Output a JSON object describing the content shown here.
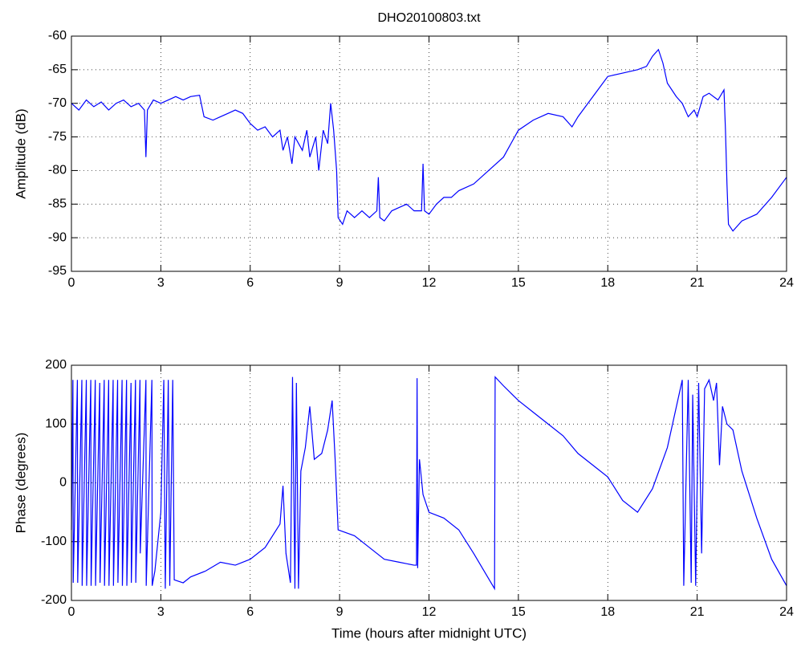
{
  "chart_data": [
    {
      "type": "line",
      "title": "DHO20100803.txt",
      "ylabel": "Amplitude (dB)",
      "color": "#0000ff",
      "grid": true,
      "xlim": [
        0,
        24
      ],
      "xticks": [
        0,
        3,
        6,
        9,
        12,
        15,
        18,
        21,
        24
      ],
      "ylim": [
        -95,
        -60
      ],
      "yticks": [
        -95,
        -90,
        -85,
        -80,
        -75,
        -70,
        -65,
        -60
      ],
      "x": [
        0,
        0.25,
        0.5,
        0.75,
        1,
        1.25,
        1.5,
        1.75,
        2,
        2.25,
        2.45,
        2.5,
        2.55,
        2.75,
        3,
        3.25,
        3.5,
        3.75,
        4,
        4.3,
        4.45,
        4.75,
        5,
        5.25,
        5.5,
        5.75,
        6,
        6.25,
        6.5,
        6.75,
        7,
        7.1,
        7.25,
        7.4,
        7.5,
        7.75,
        7.9,
        8,
        8.2,
        8.3,
        8.45,
        8.6,
        8.7,
        8.8,
        8.9,
        8.95,
        9.1,
        9.25,
        9.5,
        9.75,
        10,
        10.25,
        10.3,
        10.35,
        10.5,
        10.75,
        11,
        11.25,
        11.5,
        11.75,
        11.8,
        11.85,
        12,
        12.25,
        12.5,
        12.75,
        13,
        13.5,
        14,
        14.5,
        15,
        15.5,
        16,
        16.5,
        16.8,
        17,
        17.5,
        18,
        18.5,
        19,
        19.3,
        19.5,
        19.7,
        19.85,
        20,
        20.3,
        20.5,
        20.7,
        20.9,
        21,
        21.2,
        21.4,
        21.7,
        21.9,
        21.95,
        22,
        22.05,
        22.2,
        22.5,
        23,
        23.5,
        24
      ],
      "values": [
        -70,
        -71,
        -69.5,
        -70.5,
        -69.8,
        -71,
        -70,
        -69.5,
        -70.5,
        -70,
        -71,
        -78,
        -71,
        -69.5,
        -70,
        -69.5,
        -69,
        -69.5,
        -69,
        -68.8,
        -72,
        -72.5,
        -72,
        -71.5,
        -71,
        -71.5,
        -73,
        -74,
        -73.5,
        -75,
        -74,
        -77,
        -75,
        -79,
        -75,
        -77,
        -74,
        -78,
        -75,
        -80,
        -74,
        -76,
        -70,
        -74,
        -80,
        -87,
        -88,
        -86,
        -87,
        -86,
        -87,
        -86,
        -81,
        -87,
        -87.5,
        -86,
        -85.5,
        -85,
        -86,
        -86,
        -79,
        -86,
        -86.5,
        -85,
        -84,
        -84,
        -83,
        -82,
        -80,
        -78,
        -74,
        -72.5,
        -71.5,
        -72,
        -73.5,
        -72,
        -69,
        -66,
        -65.5,
        -65,
        -64.5,
        -63,
        -62,
        -64,
        -67,
        -69,
        -70,
        -72,
        -71,
        -72,
        -69,
        -68.5,
        -69.5,
        -68,
        -74,
        -82,
        -88,
        -89,
        -87.5,
        -86.5,
        -84,
        -81
      ]
    },
    {
      "type": "line",
      "xlabel": "Time (hours after midnight UTC)",
      "ylabel": "Phase (degrees)",
      "color": "#0000ff",
      "grid": true,
      "xlim": [
        0,
        24
      ],
      "xticks": [
        0,
        3,
        6,
        9,
        12,
        15,
        18,
        21,
        24
      ],
      "ylim": [
        -200,
        200
      ],
      "yticks": [
        -200,
        -100,
        0,
        100,
        200
      ],
      "x": [
        0,
        0.05,
        0.06,
        0.2,
        0.21,
        0.35,
        0.36,
        0.5,
        0.51,
        0.65,
        0.66,
        0.8,
        0.81,
        0.95,
        0.96,
        1.1,
        1.11,
        1.25,
        1.26,
        1.4,
        1.41,
        1.55,
        1.56,
        1.7,
        1.71,
        1.85,
        1.86,
        2.0,
        2.01,
        2.15,
        2.16,
        2.3,
        2.31,
        2.5,
        2.51,
        2.7,
        2.71,
        2.8,
        3.0,
        3.1,
        3.15,
        3.25,
        3.3,
        3.4,
        3.45,
        3.75,
        4,
        4.5,
        5,
        5.5,
        6,
        6.5,
        7,
        7.1,
        7.2,
        7.35,
        7.42,
        7.5,
        7.55,
        7.62,
        7.7,
        7.85,
        8,
        8.15,
        8.4,
        8.6,
        8.75,
        8.85,
        8.95,
        9.5,
        10,
        10.5,
        11,
        11.5,
        11.58,
        11.6,
        11.62,
        11.68,
        11.8,
        12,
        12.5,
        13,
        13.5,
        14.2,
        14.22,
        14.5,
        15,
        15.5,
        16,
        16.5,
        17,
        17.5,
        18,
        18.5,
        19,
        19.5,
        20,
        20.5,
        20.55,
        20.65,
        20.7,
        20.8,
        20.85,
        20.95,
        21.05,
        21.15,
        21.25,
        21.4,
        21.55,
        21.65,
        21.75,
        21.85,
        22,
        22.2,
        22.5,
        23,
        23.5,
        24
      ],
      "values": [
        -80,
        175,
        -170,
        175,
        -170,
        175,
        -175,
        175,
        -175,
        175,
        -175,
        175,
        -175,
        170,
        -170,
        175,
        -175,
        175,
        -175,
        175,
        -175,
        175,
        -170,
        175,
        -175,
        175,
        -175,
        170,
        -170,
        175,
        -170,
        175,
        -120,
        175,
        -175,
        175,
        -175,
        -150,
        -50,
        175,
        -180,
        175,
        -175,
        175,
        -165,
        -170,
        -160,
        -150,
        -135,
        -140,
        -130,
        -110,
        -70,
        -5,
        -120,
        -170,
        180,
        -180,
        170,
        -180,
        20,
        60,
        130,
        40,
        50,
        90,
        140,
        40,
        -80,
        -90,
        -110,
        -130,
        -135,
        -140,
        -140,
        178,
        -145,
        40,
        -20,
        -50,
        -60,
        -80,
        -120,
        -180,
        180,
        165,
        140,
        120,
        100,
        80,
        50,
        30,
        10,
        -30,
        -50,
        -10,
        60,
        175,
        -175,
        60,
        175,
        -170,
        150,
        -175,
        170,
        -120,
        160,
        175,
        140,
        170,
        30,
        130,
        100,
        90,
        20,
        -60,
        -130,
        -175
      ]
    }
  ]
}
